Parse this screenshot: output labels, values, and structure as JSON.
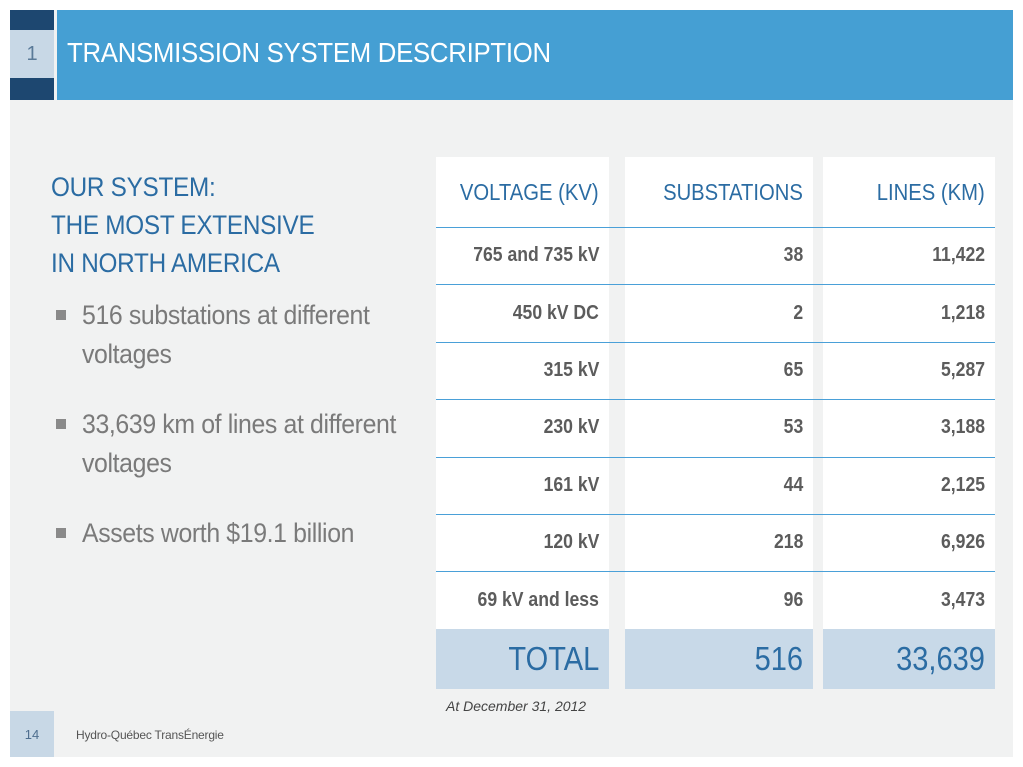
{
  "header": {
    "slide_number": "1",
    "title": "TRANSMISSION SYSTEM DESCRIPTION"
  },
  "subtitle": [
    "OUR SYSTEM:",
    "THE MOST EXTENSIVE",
    "IN NORTH AMERICA"
  ],
  "bullets": [
    [
      "516 substations at different",
      "voltages"
    ],
    [
      "33,639 km of lines at different",
      "voltages"
    ],
    [
      "Assets worth $19.1 billion"
    ]
  ],
  "table": {
    "headers": [
      "VOLTAGE (KV)",
      "SUBSTATIONS",
      "LINES (KM)"
    ],
    "rows": [
      [
        "765 and 735 kV",
        "38",
        "11,422"
      ],
      [
        "450 kV DC",
        "2",
        "1,218"
      ],
      [
        "315 kV",
        "65",
        "5,287"
      ],
      [
        "230 kV",
        "53",
        "3,188"
      ],
      [
        "161 kV",
        "44",
        "2,125"
      ],
      [
        "120 kV",
        "218",
        "6,926"
      ],
      [
        "69 kV and less",
        "96",
        "3,473"
      ]
    ],
    "total": [
      "TOTAL",
      "516",
      "33,639"
    ],
    "footnote": "At December 31, 2012"
  },
  "footer": {
    "page_number": "14",
    "company": "Hydro-Québec TransÉnergie"
  },
  "colors": {
    "header_blue": "#459fd3",
    "dark_navy": "#1d4770",
    "title_blue": "#2b6ca3",
    "total_bg": "#c8d9e8"
  }
}
